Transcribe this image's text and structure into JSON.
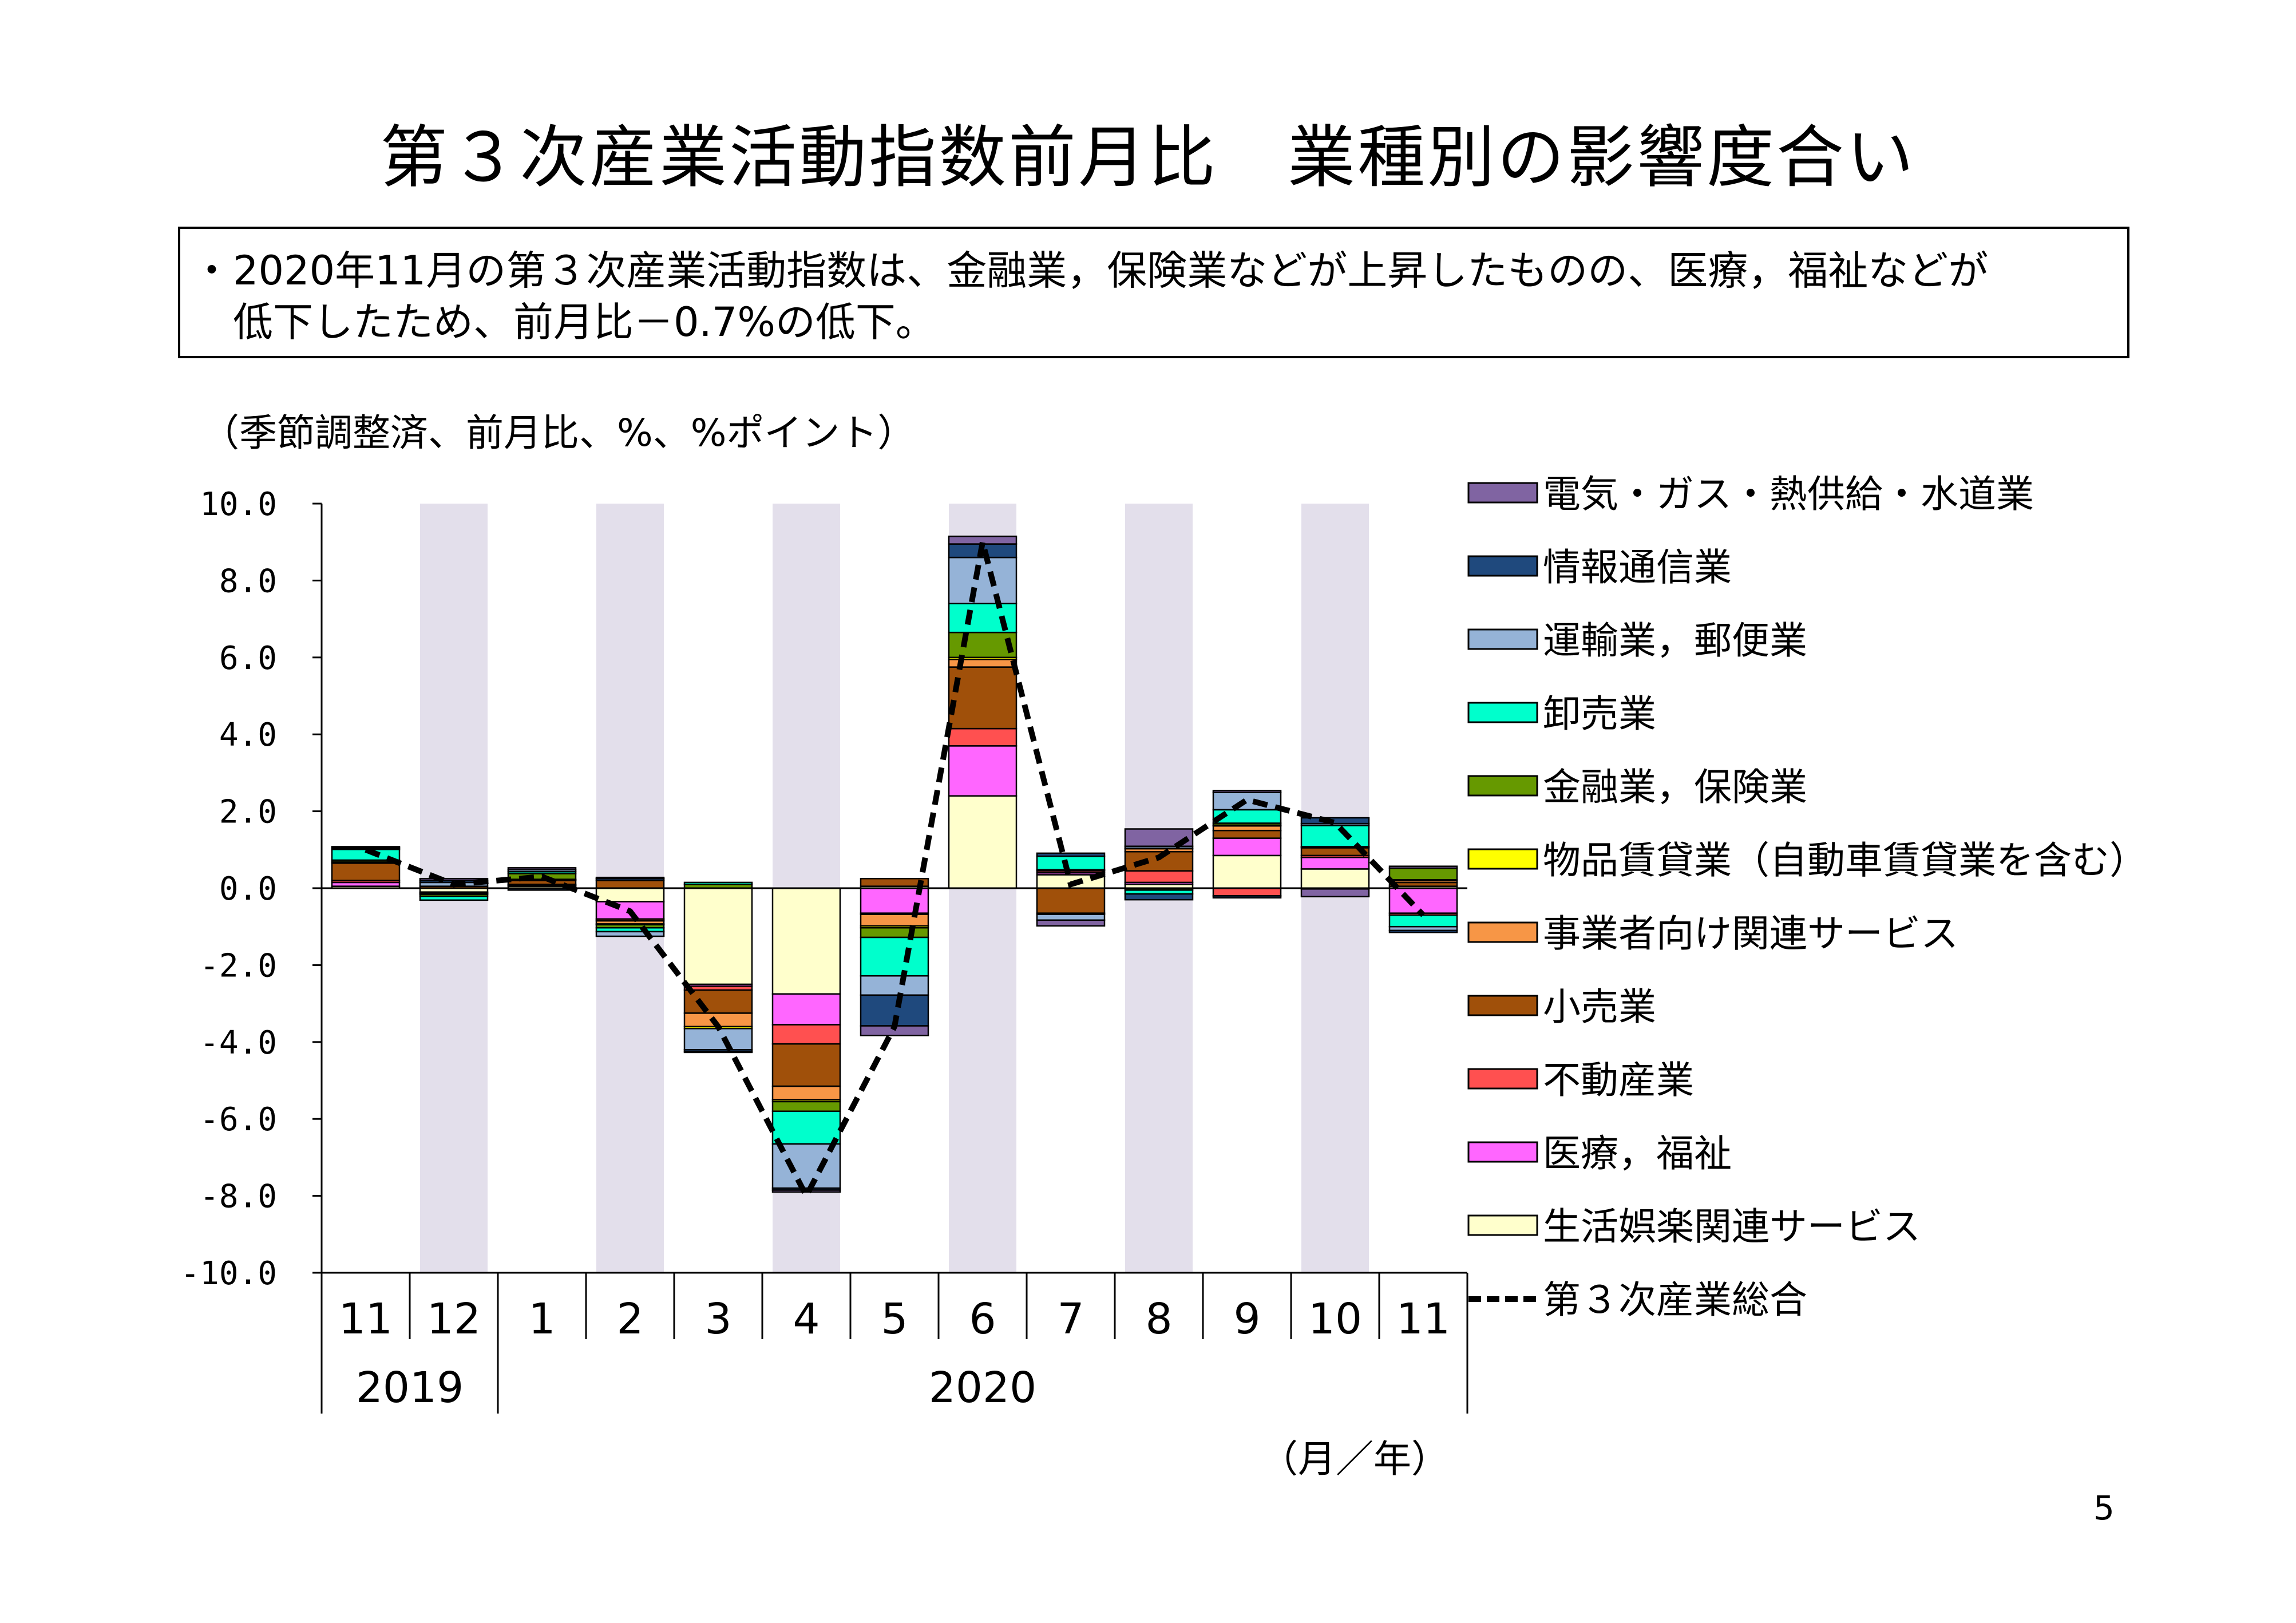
{
  "title": "第３次産業活動指数前月比　業種別の影響度合い",
  "summary": {
    "bullet": "・",
    "line1": "2020年11月の第３次産業活動指数は、金融業，保険業などが上昇したものの、医療，福祉などが",
    "line2": "低下したため、前月比－0.7%の低下。"
  },
  "unit_note": "（季節調整済、前月比、%、%ポイント）",
  "page_number": "5",
  "colors": {
    "shading": "#e3dfeb",
    "line": "#000000"
  },
  "chart_data": {
    "type": "bar",
    "stacked": true,
    "x_axis_unit": "（月／年）",
    "categories": [
      "11",
      "12",
      "1",
      "2",
      "3",
      "4",
      "5",
      "6",
      "7",
      "8",
      "9",
      "10",
      "11"
    ],
    "year_groups": [
      {
        "label": "2019",
        "start": 0,
        "end": 1
      },
      {
        "label": "2020",
        "start": 2,
        "end": 12
      }
    ],
    "shaded_categories": [
      1,
      3,
      5,
      7,
      9,
      11
    ],
    "ylim": [
      -10,
      10
    ],
    "yticks": [
      "10.0",
      "8.0",
      "6.0",
      "4.0",
      "2.0",
      "0.0",
      "-2.0",
      "-4.0",
      "-6.0",
      "-8.0",
      "-10.0"
    ],
    "ytick_values": [
      10,
      8,
      6,
      4,
      2,
      0,
      -2,
      -4,
      -6,
      -8,
      -10
    ],
    "series": [
      {
        "name": "生活娯楽関連サービス",
        "color": "#ffffcc",
        "values": [
          0.05,
          -0.1,
          0.05,
          -0.35,
          -2.5,
          -2.75,
          0.05,
          2.4,
          0.35,
          0.1,
          0.85,
          0.5,
          0.05
        ]
      },
      {
        "name": "医療，福祉",
        "color": "#ff66ff",
        "values": [
          0.1,
          -0.02,
          0.03,
          -0.45,
          -0.05,
          -0.8,
          -0.65,
          1.3,
          0.05,
          0.05,
          0.45,
          0.3,
          -0.65
        ]
      },
      {
        "name": "不動産業",
        "color": "#ff5050",
        "values": [
          0.05,
          -0.01,
          0.02,
          -0.05,
          -0.1,
          -0.5,
          -0.03,
          0.45,
          0.05,
          0.3,
          -0.2,
          0.05,
          -0.05
        ]
      },
      {
        "name": "小売業",
        "color": "#a0500a",
        "values": [
          0.45,
          0.05,
          0.1,
          0.2,
          -0.6,
          -1.1,
          0.2,
          1.6,
          -0.65,
          0.5,
          0.2,
          0.2,
          0.1
        ]
      },
      {
        "name": "事業者向け関連サービス",
        "color": "#f79646",
        "values": [
          0.02,
          -0.02,
          0.02,
          -0.08,
          -0.35,
          -0.35,
          -0.3,
          0.2,
          0.02,
          0.08,
          0.12,
          0.02,
          0.05
        ]
      },
      {
        "name": "物品賃貸業（自動車賃貸業を含む）",
        "color": "#ffff00",
        "values": [
          0.01,
          -0.01,
          0.01,
          -0.02,
          -0.05,
          -0.05,
          -0.05,
          0.05,
          0.01,
          0.01,
          0.02,
          0.01,
          0.02
        ]
      },
      {
        "name": "金融業，保険業",
        "color": "#669900",
        "values": [
          0.05,
          -0.05,
          0.15,
          -0.08,
          0.1,
          -0.25,
          -0.25,
          0.65,
          -0.03,
          -0.05,
          0.05,
          -0.02,
          0.3
        ]
      },
      {
        "name": "卸売業",
        "color": "#00ffcc",
        "values": [
          0.28,
          -0.1,
          0.05,
          -0.1,
          0.05,
          -0.85,
          -1.0,
          0.75,
          0.35,
          -0.1,
          0.35,
          0.55,
          -0.3
        ]
      },
      {
        "name": "運輸業，郵便業",
        "color": "#95b3d7",
        "values": [
          0.02,
          0.1,
          0.05,
          -0.12,
          -0.55,
          -1.15,
          -0.5,
          1.2,
          -0.15,
          0.05,
          0.45,
          0.05,
          -0.1
        ]
      },
      {
        "name": "情報通信業",
        "color": "#1f497d",
        "values": [
          0.03,
          0.05,
          -0.05,
          0.05,
          -0.05,
          -0.05,
          -0.8,
          0.35,
          0.08,
          -0.15,
          -0.05,
          0.15,
          -0.05
        ]
      },
      {
        "name": "電気・ガス・熱供給・水道業",
        "color": "#8064a2",
        "values": [
          0.02,
          0.05,
          0.05,
          0.03,
          -0.02,
          -0.05,
          -0.25,
          0.2,
          -0.15,
          0.45,
          0.05,
          -0.2,
          0.05
        ]
      }
    ],
    "line": {
      "name": "第３次産業総合",
      "values": [
        1.0,
        0.1,
        0.3,
        -0.6,
        -3.6,
        -8.0,
        -3.6,
        9.0,
        0.1,
        0.8,
        2.3,
        1.7,
        -0.7
      ]
    },
    "legend_position": "right",
    "grid": false
  }
}
